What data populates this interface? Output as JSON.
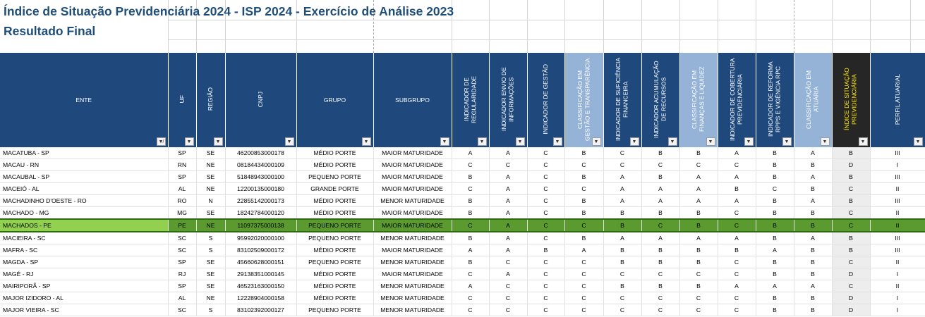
{
  "title": "Índice de Situação Previdenciária 2024 - ISP 2024 - Exercício de Análise 2023",
  "subtitle": "Resultado Final",
  "headers": [
    {
      "label": "ENTE",
      "vertical": false,
      "style": "dark",
      "filter_icon": "filter-active-icon"
    },
    {
      "label": "UF",
      "vertical": true,
      "style": "dark",
      "filter_icon": "dropdown-icon"
    },
    {
      "label": "REGIÃO",
      "vertical": true,
      "style": "dark",
      "filter_icon": "dropdown-icon"
    },
    {
      "label": "CNPJ",
      "vertical": true,
      "style": "dark",
      "filter_icon": "dropdown-icon"
    },
    {
      "label": "GRUPO",
      "vertical": false,
      "style": "dark",
      "filter_icon": "dropdown-icon"
    },
    {
      "label": "SUBGRUPO",
      "vertical": false,
      "style": "dark",
      "filter_icon": "dropdown-icon"
    },
    {
      "label": "INDICADOR DE REGULARIDADE",
      "vertical": true,
      "style": "dark",
      "filter_icon": "dropdown-icon"
    },
    {
      "label": "INDICADOR ENVIO DE INFORMAÇÕES",
      "vertical": true,
      "style": "dark",
      "filter_icon": "dropdown-icon"
    },
    {
      "label": "INDICADOR DE GESTÃO",
      "vertical": true,
      "style": "dark",
      "filter_icon": "dropdown-icon"
    },
    {
      "label": "CLASSIFICAÇÃO EM GESTÃO E TRANSPARÊNCIA",
      "vertical": true,
      "style": "light",
      "filter_icon": "dropdown-icon"
    },
    {
      "label": "INDICADOR DE SUFICIÊNCIA FINANCEIRA",
      "vertical": true,
      "style": "dark",
      "filter_icon": "dropdown-icon"
    },
    {
      "label": "INDICADOR ACUMULAÇÃO DE RECURSOS",
      "vertical": true,
      "style": "dark",
      "filter_icon": "dropdown-icon"
    },
    {
      "label": "CLASSIFICAÇÃO EM FINANÇAS E LIQUIDEZ",
      "vertical": true,
      "style": "light",
      "filter_icon": "dropdown-icon"
    },
    {
      "label": "INDICADOR DE COBERTURA PREVIDENCIÁRIA",
      "vertical": true,
      "style": "dark",
      "filter_icon": "dropdown-icon"
    },
    {
      "label": "INDICADOR DE REFORMA RPPS E VIGÊNCIA RPC",
      "vertical": true,
      "style": "dark",
      "filter_icon": "dropdown-icon"
    },
    {
      "label": "CLASSIFICAÇÃO EM ATUÁRIA",
      "vertical": true,
      "style": "light",
      "filter_icon": "dropdown-icon"
    },
    {
      "label": "ÍNDICE DE SITUAÇÃO PREVIDENCIÁRIA",
      "vertical": true,
      "style": "black",
      "filter_icon": "dropdown-icon"
    },
    {
      "label": "PERFIL ATUARIAL",
      "vertical": true,
      "style": "dark",
      "filter_icon": "dropdown-icon"
    }
  ],
  "rows": [
    [
      "MACATUBA - SP",
      "SP",
      "SE",
      "46200853000178",
      "MÉDIO PORTE",
      "MAIOR MATURIDADE",
      "A",
      "A",
      "C",
      "B",
      "C",
      "B",
      "B",
      "A",
      "B",
      "A",
      "B",
      "III"
    ],
    [
      "MACAU - RN",
      "RN",
      "NE",
      "08184434000109",
      "MÉDIO PORTE",
      "MAIOR MATURIDADE",
      "C",
      "C",
      "C",
      "C",
      "C",
      "C",
      "C",
      "C",
      "B",
      "B",
      "D",
      "I"
    ],
    [
      "MACAUBAL - SP",
      "SP",
      "SE",
      "51848943000100",
      "PEQUENO PORTE",
      "MAIOR MATURIDADE",
      "B",
      "A",
      "C",
      "B",
      "A",
      "B",
      "A",
      "A",
      "B",
      "A",
      "B",
      "III"
    ],
    [
      "MACEIÓ - AL",
      "AL",
      "NE",
      "12200135000180",
      "GRANDE PORTE",
      "MAIOR MATURIDADE",
      "C",
      "A",
      "C",
      "C",
      "A",
      "A",
      "A",
      "B",
      "C",
      "B",
      "C",
      "II"
    ],
    [
      "MACHADINHO D'OESTE - RO",
      "RO",
      "N",
      "22855142000173",
      "MÉDIO PORTE",
      "MENOR MATURIDADE",
      "B",
      "A",
      "C",
      "B",
      "A",
      "A",
      "A",
      "A",
      "B",
      "A",
      "B",
      "III"
    ],
    [
      "MACHADO - MG",
      "MG",
      "SE",
      "18242784000120",
      "MÉDIO PORTE",
      "MAIOR MATURIDADE",
      "B",
      "A",
      "C",
      "B",
      "B",
      "B",
      "B",
      "C",
      "B",
      "B",
      "C",
      "II"
    ],
    [
      "MACHADOS - PE",
      "PE",
      "NE",
      "11097375000138",
      "PEQUENO PORTE",
      "MAIOR MATURIDADE",
      "C",
      "A",
      "C",
      "C",
      "B",
      "C",
      "B",
      "C",
      "B",
      "B",
      "C",
      "II"
    ],
    [
      "MACIEIRA - SC",
      "SC",
      "S",
      "95992020000100",
      "PEQUENO PORTE",
      "MENOR MATURIDADE",
      "B",
      "A",
      "C",
      "B",
      "A",
      "A",
      "A",
      "A",
      "B",
      "A",
      "B",
      "III"
    ],
    [
      "MAFRA - SC",
      "SC",
      "S",
      "83102509000172",
      "MÉDIO PORTE",
      "MAIOR MATURIDADE",
      "A",
      "A",
      "B",
      "A",
      "B",
      "B",
      "B",
      "B",
      "A",
      "B",
      "B",
      "III"
    ],
    [
      "MAGDA - SP",
      "SP",
      "SE",
      "45660628000151",
      "PEQUENO PORTE",
      "MENOR MATURIDADE",
      "B",
      "C",
      "C",
      "C",
      "B",
      "B",
      "B",
      "C",
      "B",
      "B",
      "C",
      "II"
    ],
    [
      "MAGÉ - RJ",
      "RJ",
      "SE",
      "29138351000145",
      "MÉDIO PORTE",
      "MAIOR MATURIDADE",
      "C",
      "A",
      "C",
      "C",
      "C",
      "C",
      "C",
      "C",
      "B",
      "B",
      "D",
      "I"
    ],
    [
      "MAIRIPORÃ - SP",
      "SP",
      "SE",
      "46523163000150",
      "MÉDIO PORTE",
      "MENOR MATURIDADE",
      "A",
      "C",
      "C",
      "C",
      "B",
      "B",
      "B",
      "A",
      "A",
      "A",
      "C",
      "II"
    ],
    [
      "MAJOR IZIDORO - AL",
      "AL",
      "NE",
      "12228904000158",
      "MÉDIO PORTE",
      "MENOR MATURIDADE",
      "C",
      "C",
      "C",
      "C",
      "C",
      "C",
      "C",
      "C",
      "B",
      "B",
      "D",
      "I"
    ],
    [
      "MAJOR VIEIRA - SC",
      "SC",
      "S",
      "83102392000127",
      "PEQUENO PORTE",
      "MENOR MATURIDADE",
      "C",
      "C",
      "C",
      "C",
      "C",
      "C",
      "C",
      "C",
      "B",
      "B",
      "D",
      "I"
    ]
  ],
  "selected_row_index": 6
}
